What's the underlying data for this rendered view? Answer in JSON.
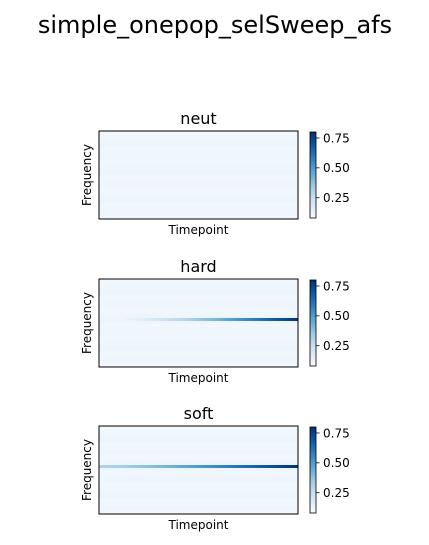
{
  "figure": {
    "title": "simple_onepop_selSweep_afs"
  },
  "chart_data": [
    {
      "type": "heatmap",
      "title": "neut",
      "xlabel": "Timepoint",
      "ylabel": "Frequency",
      "xticks": [],
      "yticks": [],
      "colormap": "Blues",
      "colorbar": {
        "range": [
          0.08,
          0.8
        ],
        "ticks": [
          0.25,
          0.5,
          0.75
        ],
        "tick_labels": [
          "0.25",
          "0.50",
          "0.75"
        ]
      },
      "background_value": 0.1,
      "sweep": null
    },
    {
      "type": "heatmap",
      "title": "hard",
      "xlabel": "Timepoint",
      "ylabel": "Frequency",
      "xticks": [],
      "yticks": [],
      "colormap": "Blues",
      "colorbar": {
        "range": [
          0.08,
          0.8
        ],
        "ticks": [
          0.25,
          0.5,
          0.75
        ],
        "tick_labels": [
          "0.25",
          "0.50",
          "0.75"
        ]
      },
      "background_value": 0.1,
      "sweep": {
        "row_fraction": 0.46,
        "start_fraction": 0.12,
        "start_value": 0.12,
        "end_value": 0.8
      }
    },
    {
      "type": "heatmap",
      "title": "soft",
      "xlabel": "Timepoint",
      "ylabel": "Frequency",
      "xticks": [],
      "yticks": [],
      "colormap": "Blues",
      "colorbar": {
        "range": [
          0.08,
          0.8
        ],
        "ticks": [
          0.25,
          0.5,
          0.75
        ],
        "tick_labels": [
          "0.25",
          "0.50",
          "0.75"
        ]
      },
      "background_value": 0.1,
      "sweep": {
        "row_fraction": 0.46,
        "start_fraction": 0.0,
        "start_value": 0.3,
        "end_value": 0.8
      }
    }
  ]
}
